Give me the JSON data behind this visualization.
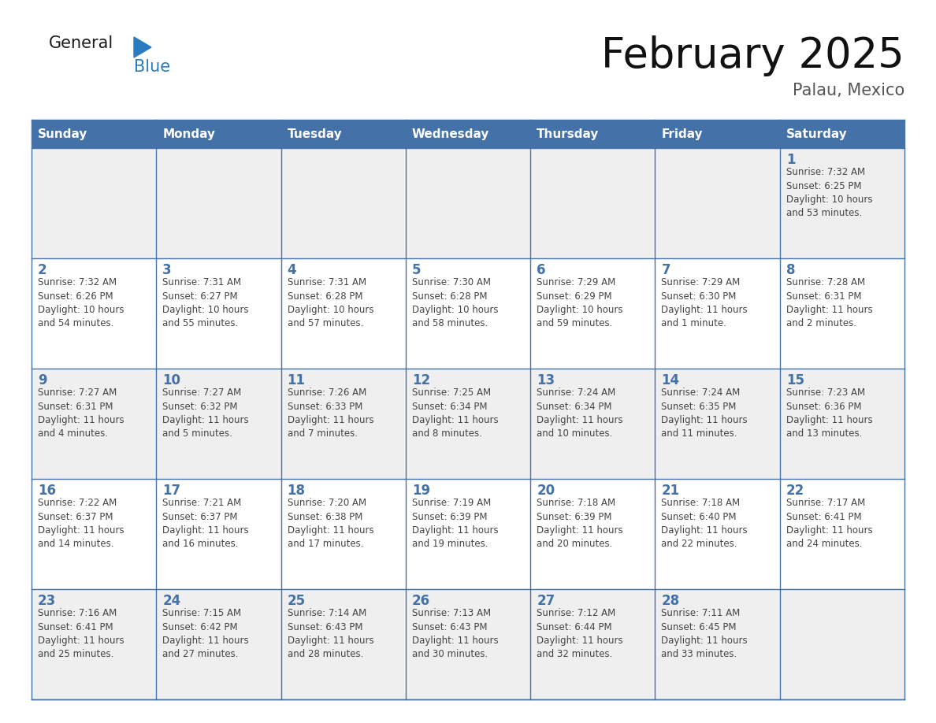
{
  "title": "February 2025",
  "subtitle": "Palau, Mexico",
  "days_of_week": [
    "Sunday",
    "Monday",
    "Tuesday",
    "Wednesday",
    "Thursday",
    "Friday",
    "Saturday"
  ],
  "header_bg": "#4472A8",
  "header_text": "#FFFFFF",
  "cell_bg_even": "#EFEFEF",
  "cell_bg_odd": "#FFFFFF",
  "border_color": "#4472A8",
  "day_num_color": "#4472A8",
  "text_color": "#444444",
  "logo_general_color": "#1a1a1a",
  "logo_blue_color": "#2A7BC0",
  "weeks": [
    [
      {
        "day": null,
        "info": null
      },
      {
        "day": null,
        "info": null
      },
      {
        "day": null,
        "info": null
      },
      {
        "day": null,
        "info": null
      },
      {
        "day": null,
        "info": null
      },
      {
        "day": null,
        "info": null
      },
      {
        "day": 1,
        "info": "Sunrise: 7:32 AM\nSunset: 6:25 PM\nDaylight: 10 hours\nand 53 minutes."
      }
    ],
    [
      {
        "day": 2,
        "info": "Sunrise: 7:32 AM\nSunset: 6:26 PM\nDaylight: 10 hours\nand 54 minutes."
      },
      {
        "day": 3,
        "info": "Sunrise: 7:31 AM\nSunset: 6:27 PM\nDaylight: 10 hours\nand 55 minutes."
      },
      {
        "day": 4,
        "info": "Sunrise: 7:31 AM\nSunset: 6:28 PM\nDaylight: 10 hours\nand 57 minutes."
      },
      {
        "day": 5,
        "info": "Sunrise: 7:30 AM\nSunset: 6:28 PM\nDaylight: 10 hours\nand 58 minutes."
      },
      {
        "day": 6,
        "info": "Sunrise: 7:29 AM\nSunset: 6:29 PM\nDaylight: 10 hours\nand 59 minutes."
      },
      {
        "day": 7,
        "info": "Sunrise: 7:29 AM\nSunset: 6:30 PM\nDaylight: 11 hours\nand 1 minute."
      },
      {
        "day": 8,
        "info": "Sunrise: 7:28 AM\nSunset: 6:31 PM\nDaylight: 11 hours\nand 2 minutes."
      }
    ],
    [
      {
        "day": 9,
        "info": "Sunrise: 7:27 AM\nSunset: 6:31 PM\nDaylight: 11 hours\nand 4 minutes."
      },
      {
        "day": 10,
        "info": "Sunrise: 7:27 AM\nSunset: 6:32 PM\nDaylight: 11 hours\nand 5 minutes."
      },
      {
        "day": 11,
        "info": "Sunrise: 7:26 AM\nSunset: 6:33 PM\nDaylight: 11 hours\nand 7 minutes."
      },
      {
        "day": 12,
        "info": "Sunrise: 7:25 AM\nSunset: 6:34 PM\nDaylight: 11 hours\nand 8 minutes."
      },
      {
        "day": 13,
        "info": "Sunrise: 7:24 AM\nSunset: 6:34 PM\nDaylight: 11 hours\nand 10 minutes."
      },
      {
        "day": 14,
        "info": "Sunrise: 7:24 AM\nSunset: 6:35 PM\nDaylight: 11 hours\nand 11 minutes."
      },
      {
        "day": 15,
        "info": "Sunrise: 7:23 AM\nSunset: 6:36 PM\nDaylight: 11 hours\nand 13 minutes."
      }
    ],
    [
      {
        "day": 16,
        "info": "Sunrise: 7:22 AM\nSunset: 6:37 PM\nDaylight: 11 hours\nand 14 minutes."
      },
      {
        "day": 17,
        "info": "Sunrise: 7:21 AM\nSunset: 6:37 PM\nDaylight: 11 hours\nand 16 minutes."
      },
      {
        "day": 18,
        "info": "Sunrise: 7:20 AM\nSunset: 6:38 PM\nDaylight: 11 hours\nand 17 minutes."
      },
      {
        "day": 19,
        "info": "Sunrise: 7:19 AM\nSunset: 6:39 PM\nDaylight: 11 hours\nand 19 minutes."
      },
      {
        "day": 20,
        "info": "Sunrise: 7:18 AM\nSunset: 6:39 PM\nDaylight: 11 hours\nand 20 minutes."
      },
      {
        "day": 21,
        "info": "Sunrise: 7:18 AM\nSunset: 6:40 PM\nDaylight: 11 hours\nand 22 minutes."
      },
      {
        "day": 22,
        "info": "Sunrise: 7:17 AM\nSunset: 6:41 PM\nDaylight: 11 hours\nand 24 minutes."
      }
    ],
    [
      {
        "day": 23,
        "info": "Sunrise: 7:16 AM\nSunset: 6:41 PM\nDaylight: 11 hours\nand 25 minutes."
      },
      {
        "day": 24,
        "info": "Sunrise: 7:15 AM\nSunset: 6:42 PM\nDaylight: 11 hours\nand 27 minutes."
      },
      {
        "day": 25,
        "info": "Sunrise: 7:14 AM\nSunset: 6:43 PM\nDaylight: 11 hours\nand 28 minutes."
      },
      {
        "day": 26,
        "info": "Sunrise: 7:13 AM\nSunset: 6:43 PM\nDaylight: 11 hours\nand 30 minutes."
      },
      {
        "day": 27,
        "info": "Sunrise: 7:12 AM\nSunset: 6:44 PM\nDaylight: 11 hours\nand 32 minutes."
      },
      {
        "day": 28,
        "info": "Sunrise: 7:11 AM\nSunset: 6:45 PM\nDaylight: 11 hours\nand 33 minutes."
      },
      {
        "day": null,
        "info": null
      }
    ]
  ]
}
